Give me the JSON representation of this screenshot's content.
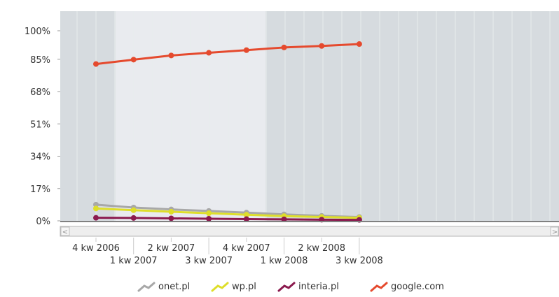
{
  "chart_data": {
    "type": "line",
    "categories": [
      "4 kw 2006",
      "1 kw 2007",
      "2 kw 2007",
      "3 kw 2007",
      "4 kw 2007",
      "1 kw 2008",
      "2 kw 2008",
      "3 kw 2008"
    ],
    "y_ticks": [
      "0%",
      "17%",
      "34%",
      "51%",
      "68%",
      "85%",
      "100%"
    ],
    "ylim": [
      0,
      100
    ],
    "series": [
      {
        "name": "onet.pl",
        "color": "#a8a8a8",
        "values": [
          8.5,
          7.0,
          6.0,
          5.2,
          4.3,
          3.4,
          2.6,
          2.0
        ]
      },
      {
        "name": "wp.pl",
        "color": "#dede2a",
        "values": [
          6.5,
          5.6,
          4.8,
          4.0,
          3.2,
          2.5,
          2.0,
          1.6
        ]
      },
      {
        "name": "interia.pl",
        "color": "#8b1a4e",
        "values": [
          1.6,
          1.5,
          1.3,
          1.1,
          0.9,
          0.8,
          0.6,
          0.5
        ]
      },
      {
        "name": "google.com",
        "color": "#e54a2e",
        "values": [
          82.5,
          84.8,
          87.0,
          88.4,
          89.8,
          91.2,
          92.0,
          93.0
        ]
      }
    ],
    "grid": true,
    "legend_position": "bottom"
  },
  "scrollbar": {
    "left_arrow": "<",
    "right_arrow": ">"
  },
  "colors": {
    "plot_background": "#d6dbdf",
    "highlight_band": "#e9ebef",
    "grid_line": "#e8ecee",
    "axis_line": "#808080"
  }
}
